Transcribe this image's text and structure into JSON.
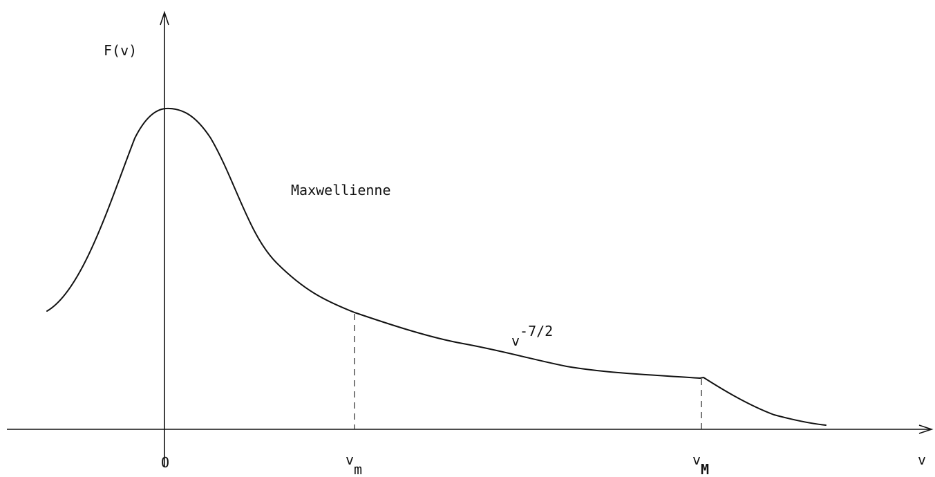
{
  "labels": {
    "y_axis": "F(v)",
    "x_axis": "v",
    "origin": "O",
    "vm_base": "v",
    "vm_sub": "m",
    "vM_base": "v",
    "vM_sub": "M",
    "maxwellian": "Maxwellienne",
    "power_base": "v",
    "power_exp": "-7/2"
  }
}
